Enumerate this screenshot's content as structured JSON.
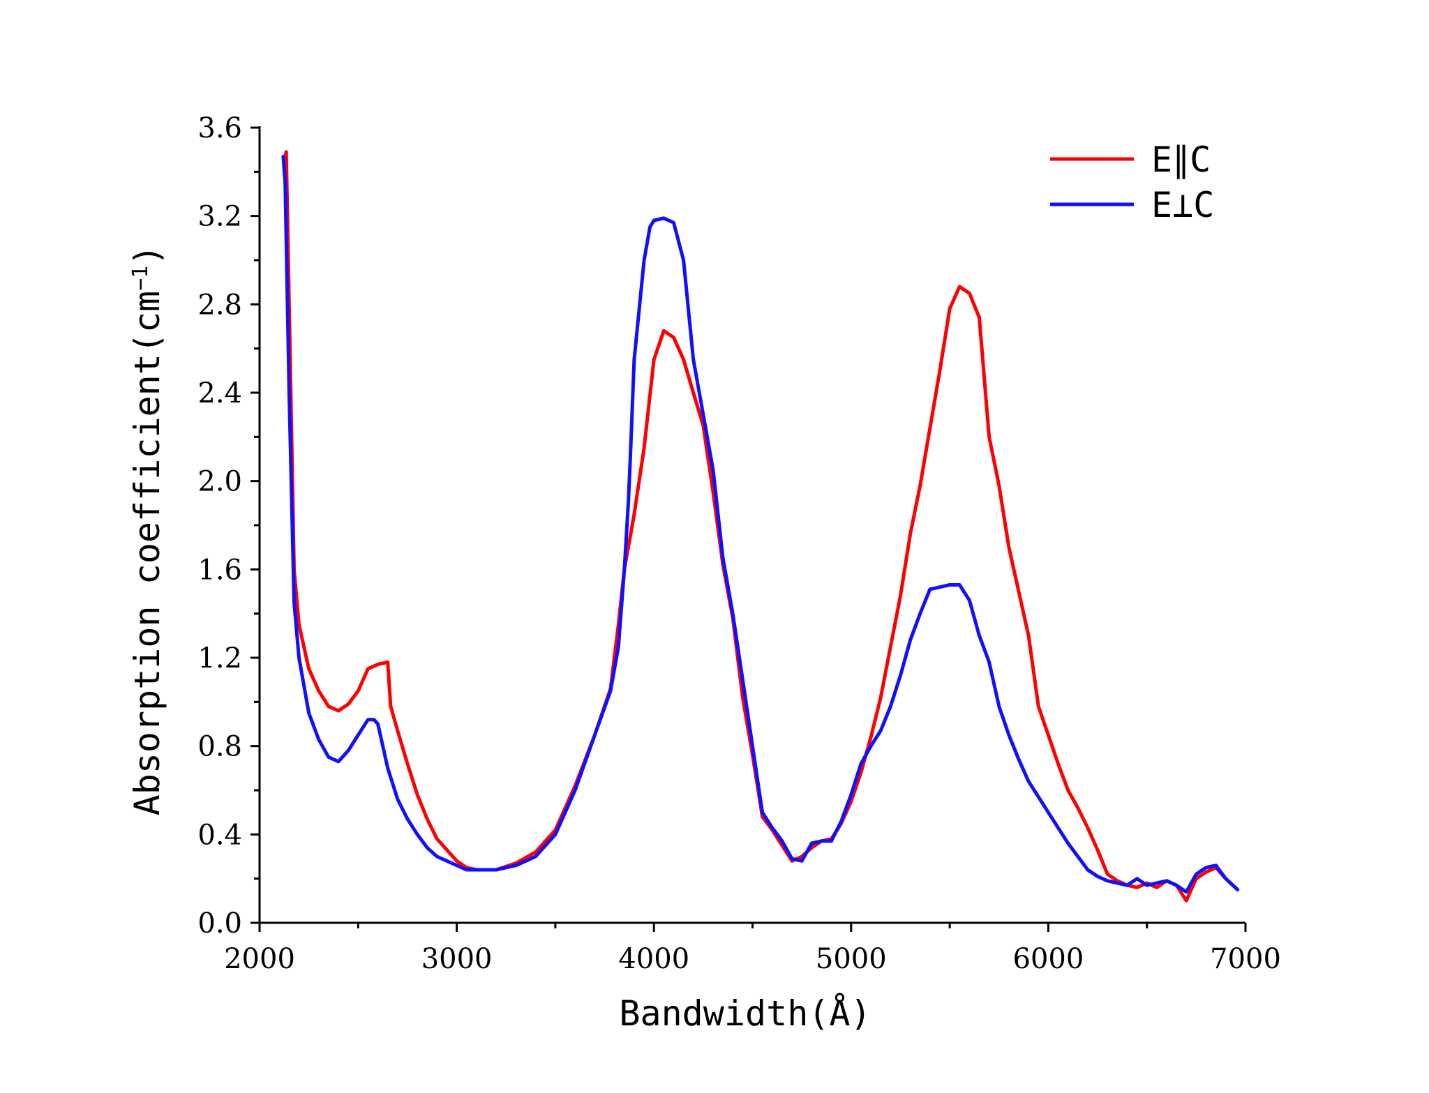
{
  "chart_data": {
    "type": "line",
    "title": "",
    "xlabel": "Bandwidth(Å)",
    "ylabel": "Absorption coefficient(cm",
    "ylabel_sup": "−1",
    "ylabel_close": ")",
    "xlim": [
      2000,
      7000
    ],
    "ylim": [
      0.0,
      3.6
    ],
    "x_ticks": [
      2000,
      3000,
      4000,
      5000,
      6000,
      7000
    ],
    "x_tick_labels": [
      "2000",
      "3000",
      "4000",
      "5000",
      "6000",
      "7000"
    ],
    "y_ticks": [
      0.0,
      0.4,
      0.8,
      1.2,
      1.6,
      2.0,
      2.4,
      2.8,
      3.2,
      3.6
    ],
    "y_tick_labels": [
      "0.0",
      "0.4",
      "0.8",
      "1.2",
      "1.6",
      "2.0",
      "2.4",
      "2.8",
      "3.2",
      "3.6"
    ],
    "grid": false,
    "legend_position": "top-right",
    "series": [
      {
        "name": "E∥C",
        "color": "#ff0000",
        "x": [
          2125,
          2135,
          2150,
          2175,
          2200,
          2250,
          2300,
          2350,
          2400,
          2450,
          2500,
          2550,
          2600,
          2650,
          2665,
          2700,
          2750,
          2800,
          2850,
          2900,
          3000,
          3050,
          3100,
          3200,
          3300,
          3400,
          3500,
          3600,
          3700,
          3780,
          3820,
          3850,
          3900,
          3950,
          4000,
          4050,
          4100,
          4150,
          4200,
          4250,
          4300,
          4350,
          4400,
          4450,
          4500,
          4550,
          4600,
          4650,
          4700,
          4750,
          4800,
          4850,
          4900,
          4950,
          5000,
          5050,
          5100,
          5150,
          5200,
          5250,
          5300,
          5350,
          5400,
          5450,
          5500,
          5550,
          5600,
          5650,
          5700,
          5750,
          5800,
          5850,
          5900,
          5950,
          6000,
          6050,
          6100,
          6150,
          6200,
          6250,
          6300,
          6350,
          6400,
          6450,
          6500,
          6550,
          6600,
          6650,
          6700,
          6750,
          6800,
          6850,
          6900,
          6960
        ],
        "y": [
          3.45,
          3.49,
          2.8,
          1.6,
          1.35,
          1.15,
          1.05,
          0.98,
          0.96,
          0.99,
          1.05,
          1.15,
          1.17,
          1.18,
          0.98,
          0.87,
          0.72,
          0.58,
          0.47,
          0.38,
          0.28,
          0.25,
          0.24,
          0.24,
          0.27,
          0.32,
          0.42,
          0.62,
          0.85,
          1.06,
          1.35,
          1.6,
          1.85,
          2.15,
          2.55,
          2.68,
          2.65,
          2.55,
          2.4,
          2.25,
          1.95,
          1.62,
          1.38,
          1.02,
          0.76,
          0.48,
          0.42,
          0.35,
          0.28,
          0.3,
          0.34,
          0.37,
          0.38,
          0.45,
          0.55,
          0.68,
          0.84,
          1.02,
          1.25,
          1.48,
          1.76,
          1.98,
          2.24,
          2.5,
          2.78,
          2.88,
          2.85,
          2.74,
          2.2,
          1.98,
          1.7,
          1.5,
          1.3,
          0.98,
          0.85,
          0.72,
          0.6,
          0.52,
          0.43,
          0.33,
          0.22,
          0.19,
          0.17,
          0.16,
          0.18,
          0.16,
          0.19,
          0.17,
          0.1,
          0.2,
          0.23,
          0.25,
          0.2,
          0.15
        ]
      },
      {
        "name": "E⊥C",
        "color": "#1010ff",
        "x": [
          2120,
          2130,
          2150,
          2175,
          2200,
          2250,
          2300,
          2350,
          2400,
          2450,
          2500,
          2550,
          2580,
          2600,
          2650,
          2700,
          2750,
          2800,
          2850,
          2900,
          3000,
          3050,
          3100,
          3200,
          3300,
          3400,
          3500,
          3600,
          3700,
          3780,
          3820,
          3850,
          3870,
          3880,
          3900,
          3950,
          3980,
          4000,
          4050,
          4100,
          4150,
          4200,
          4250,
          4300,
          4350,
          4400,
          4450,
          4500,
          4550,
          4600,
          4650,
          4700,
          4750,
          4800,
          4850,
          4900,
          4950,
          5000,
          5050,
          5100,
          5150,
          5200,
          5250,
          5300,
          5350,
          5400,
          5450,
          5500,
          5550,
          5600,
          5650,
          5700,
          5750,
          5800,
          5850,
          5900,
          5950,
          6000,
          6050,
          6100,
          6150,
          6200,
          6250,
          6300,
          6350,
          6400,
          6450,
          6500,
          6550,
          6600,
          6650,
          6700,
          6750,
          6800,
          6850,
          6900,
          6960
        ],
        "y": [
          3.47,
          3.35,
          2.4,
          1.45,
          1.2,
          0.95,
          0.83,
          0.75,
          0.73,
          0.78,
          0.85,
          0.92,
          0.92,
          0.9,
          0.7,
          0.56,
          0.47,
          0.4,
          0.34,
          0.3,
          0.26,
          0.24,
          0.24,
          0.24,
          0.26,
          0.3,
          0.4,
          0.6,
          0.85,
          1.05,
          1.25,
          1.6,
          1.9,
          2.1,
          2.55,
          3.0,
          3.15,
          3.18,
          3.19,
          3.17,
          3.0,
          2.55,
          2.3,
          2.05,
          1.65,
          1.4,
          1.1,
          0.8,
          0.5,
          0.43,
          0.37,
          0.29,
          0.28,
          0.36,
          0.37,
          0.37,
          0.46,
          0.58,
          0.72,
          0.8,
          0.87,
          0.98,
          1.12,
          1.28,
          1.4,
          1.51,
          1.52,
          1.53,
          1.53,
          1.46,
          1.3,
          1.18,
          0.98,
          0.85,
          0.74,
          0.64,
          0.57,
          0.5,
          0.43,
          0.36,
          0.3,
          0.24,
          0.21,
          0.19,
          0.18,
          0.17,
          0.2,
          0.17,
          0.18,
          0.19,
          0.17,
          0.14,
          0.22,
          0.25,
          0.26,
          0.2,
          0.15
        ]
      }
    ]
  }
}
